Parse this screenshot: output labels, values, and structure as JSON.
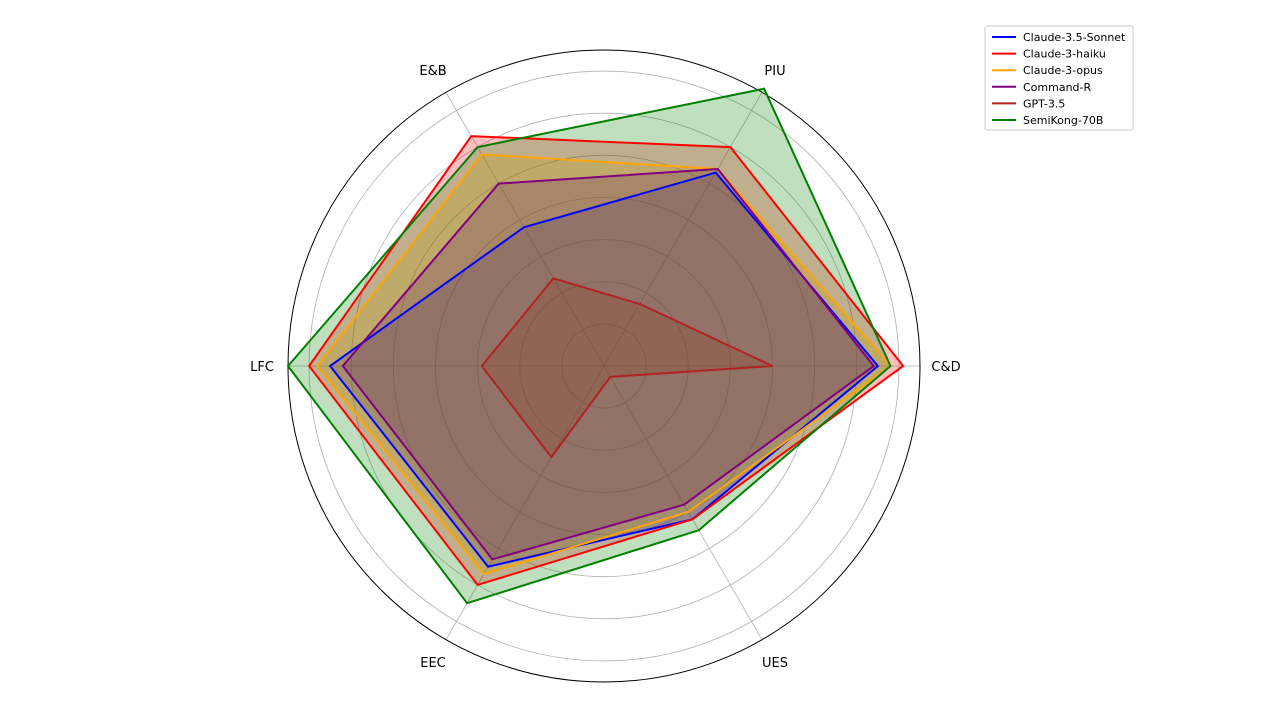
{
  "chart_data": {
    "type": "radar",
    "axes": [
      "C&D",
      "PIU",
      "E&B",
      "LFC",
      "EEC",
      "UES"
    ],
    "rlim": [
      0,
      7.5
    ],
    "grid": true,
    "legend_position": "top-right",
    "series": [
      {
        "name": "Claude-3.5-Sonnet",
        "color": "#0000ff",
        "fill": false,
        "values": [
          6.5,
          5.3,
          3.8,
          6.5,
          5.5,
          4.2
        ]
      },
      {
        "name": "Claude-3-haiku",
        "color": "#ff0000",
        "fill": true,
        "values": [
          7.1,
          6.0,
          6.3,
          7.0,
          6.0,
          4.2
        ]
      },
      {
        "name": "Claude-3-opus",
        "color": "#ffa500",
        "fill": false,
        "values": [
          6.8,
          5.4,
          5.8,
          6.8,
          5.7,
          4.0
        ]
      },
      {
        "name": "Command-R",
        "color": "#800080",
        "fill": false,
        "values": [
          6.4,
          5.4,
          5.0,
          6.2,
          5.3,
          3.8
        ]
      },
      {
        "name": "GPT-3.5",
        "color": "#b22222",
        "fill": false,
        "values": [
          4.0,
          1.7,
          2.4,
          2.9,
          2.5,
          0.3
        ]
      },
      {
        "name": "SemiKong-70B",
        "color": "#008000",
        "fill": true,
        "values": [
          6.8,
          7.6,
          6.0,
          7.5,
          6.5,
          4.5
        ]
      }
    ]
  }
}
